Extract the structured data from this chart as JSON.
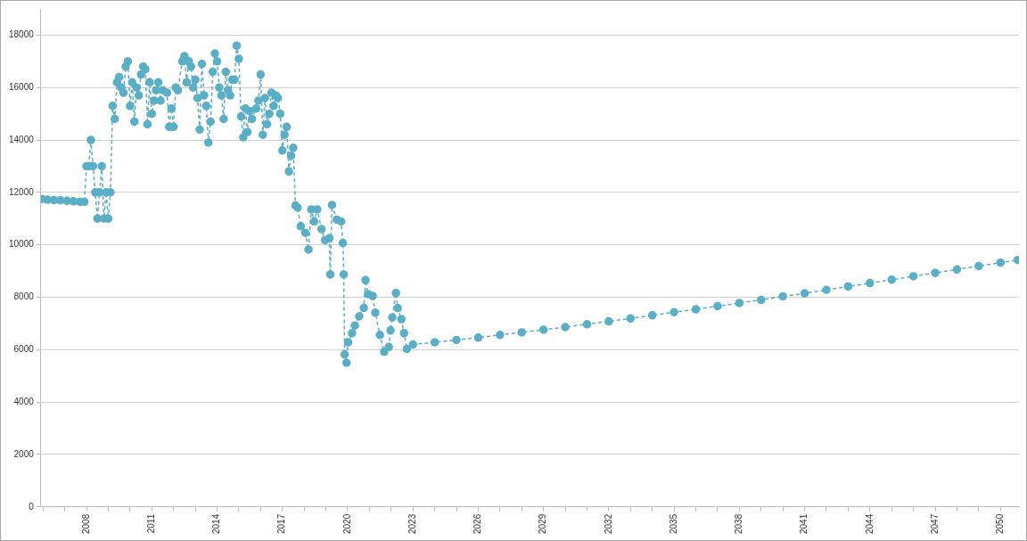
{
  "chart_data": {
    "type": "line",
    "color": "#5aafc7",
    "marker": "circle",
    "line_style": "dashed",
    "grid": "y",
    "legend": false,
    "x": [
      2005.95,
      2006.2,
      2006.5,
      2006.8,
      2007.1,
      2007.4,
      2007.7,
      2007.9,
      2008.0,
      2008.1,
      2008.2,
      2008.3,
      2008.4,
      2008.5,
      2008.6,
      2008.7,
      2008.8,
      2008.9,
      2009.0,
      2009.1,
      2009.2,
      2009.3,
      2009.4,
      2009.5,
      2009.6,
      2009.7,
      2009.8,
      2009.9,
      2010.0,
      2010.1,
      2010.2,
      2010.3,
      2010.4,
      2010.5,
      2010.6,
      2010.7,
      2010.8,
      2010.9,
      2011.0,
      2011.1,
      2011.2,
      2011.3,
      2011.4,
      2011.5,
      2011.7,
      2011.8,
      2011.9,
      2012.0,
      2012.1,
      2012.2,
      2012.4,
      2012.5,
      2012.6,
      2012.7,
      2012.8,
      2012.9,
      2013.0,
      2013.1,
      2013.2,
      2013.3,
      2013.4,
      2013.5,
      2013.6,
      2013.7,
      2013.8,
      2013.9,
      2014.0,
      2014.1,
      2014.2,
      2014.3,
      2014.4,
      2014.5,
      2014.6,
      2014.7,
      2014.8,
      2014.9,
      2015.0,
      2015.1,
      2015.2,
      2015.3,
      2015.4,
      2015.5,
      2015.6,
      2015.8,
      2015.9,
      2016.0,
      2016.1,
      2016.2,
      2016.3,
      2016.4,
      2016.5,
      2016.6,
      2016.7,
      2016.8,
      2016.9,
      2017.0,
      2017.1,
      2017.2,
      2017.3,
      2017.4,
      2017.5,
      2017.6,
      2017.7,
      2017.84,
      2018.05,
      2018.2,
      2018.33,
      2018.46,
      2018.6,
      2018.8,
      2018.96,
      2019.16,
      2019.2,
      2019.28,
      2019.5,
      2019.7,
      2019.78,
      2019.82,
      2019.86,
      2019.95,
      2020.02,
      2020.2,
      2020.33,
      2020.53,
      2020.74,
      2020.82,
      2020.94,
      2021.15,
      2021.27,
      2021.48,
      2021.68,
      2021.89,
      2021.97,
      2022.05,
      2022.22,
      2022.3,
      2022.47,
      2022.59,
      2022.72,
      2023,
      2024,
      2025,
      2026,
      2027,
      2028,
      2029,
      2030,
      2031,
      2032,
      2033,
      2034,
      2035,
      2036,
      2037,
      2038,
      2039,
      2040,
      2041,
      2042,
      2043,
      2044,
      2045,
      2046,
      2047,
      2048,
      2049,
      2050,
      2050.8
    ],
    "values": [
      11750,
      11720,
      11710,
      11700,
      11680,
      11660,
      11640,
      11640,
      13000,
      13000,
      14000,
      13000,
      12000,
      11000,
      12000,
      13000,
      11000,
      12000,
      11000,
      12000,
      15300,
      14800,
      16200,
      16400,
      16000,
      15800,
      16800,
      17000,
      15300,
      16200,
      14700,
      16000,
      15700,
      16500,
      16800,
      16700,
      14600,
      16200,
      15000,
      15500,
      15900,
      16200,
      15500,
      15900,
      15800,
      14500,
      15200,
      14500,
      16000,
      15900,
      17000,
      17200,
      16200,
      17000,
      16800,
      16000,
      16300,
      15600,
      14400,
      16900,
      15700,
      15300,
      13900,
      14700,
      16600,
      17300,
      17000,
      16000,
      15700,
      14800,
      16600,
      15900,
      15700,
      16300,
      16300,
      17600,
      17100,
      14900,
      14100,
      15200,
      14300,
      15100,
      14800,
      15200,
      15500,
      16500,
      14200,
      15600,
      14600,
      15000,
      15800,
      15300,
      15700,
      15600,
      15000,
      13600,
      14200,
      14500,
      12800,
      13400,
      13700,
      11500,
      11420,
      10710,
      10460,
      9820,
      11350,
      10890,
      11350,
      10600,
      10180,
      10250,
      8870,
      11520,
      10960,
      10890,
      10070,
      8870,
      5820,
      5500,
      6280,
      6630,
      6920,
      7270,
      7590,
      8650,
      8120,
      8050,
      7410,
      6560,
      5920,
      6100,
      6740,
      7230,
      8160,
      7590,
      7160,
      6630,
      6030,
      6200,
      6280,
      6370,
      6460,
      6560,
      6660,
      6760,
      6860,
      6970,
      7080,
      7190,
      7310,
      7430,
      7540,
      7660,
      7780,
      7900,
      8030,
      8150,
      8280,
      8410,
      8540,
      8670,
      8800,
      8930,
      9060,
      9190,
      9320,
      9420
    ],
    "xlim": [
      2005.9,
      2050.85
    ],
    "xticks": [
      {
        "value": 2006,
        "label": null
      },
      {
        "value": 2007,
        "label": null
      },
      2008,
      {
        "value": 2009,
        "label": null
      },
      {
        "value": 2010,
        "label": null
      },
      2011,
      {
        "value": 2012,
        "label": null
      },
      {
        "value": 2013,
        "label": null
      },
      2014,
      {
        "value": 2015,
        "label": null
      },
      {
        "value": 2016,
        "label": null
      },
      2017,
      {
        "value": 2018,
        "label": null
      },
      {
        "value": 2019,
        "label": null
      },
      2020,
      {
        "value": 2021,
        "label": null
      },
      {
        "value": 2022,
        "label": null
      },
      2023,
      {
        "value": 2024,
        "label": null
      },
      {
        "value": 2025,
        "label": null
      },
      2026,
      {
        "value": 2027,
        "label": null
      },
      {
        "value": 2028,
        "label": null
      },
      2029,
      {
        "value": 2030,
        "label": null
      },
      {
        "value": 2031,
        "label": null
      },
      2032,
      {
        "value": 2033,
        "label": null
      },
      {
        "value": 2034,
        "label": null
      },
      2035,
      {
        "value": 2036,
        "label": null
      },
      {
        "value": 2037,
        "label": null
      },
      2038,
      {
        "value": 2039,
        "label": null
      },
      {
        "value": 2040,
        "label": null
      },
      2041,
      {
        "value": 2042,
        "label": null
      },
      {
        "value": 2043,
        "label": null
      },
      2044,
      {
        "value": 2045,
        "label": null
      },
      {
        "value": 2046,
        "label": null
      },
      2047,
      {
        "value": 2048,
        "label": null
      },
      {
        "value": 2049,
        "label": null
      },
      2050
    ],
    "ylim": [
      0,
      19000
    ],
    "yticks": [
      0,
      2000,
      4000,
      6000,
      8000,
      10000,
      12000,
      14000,
      16000,
      18000
    ]
  }
}
